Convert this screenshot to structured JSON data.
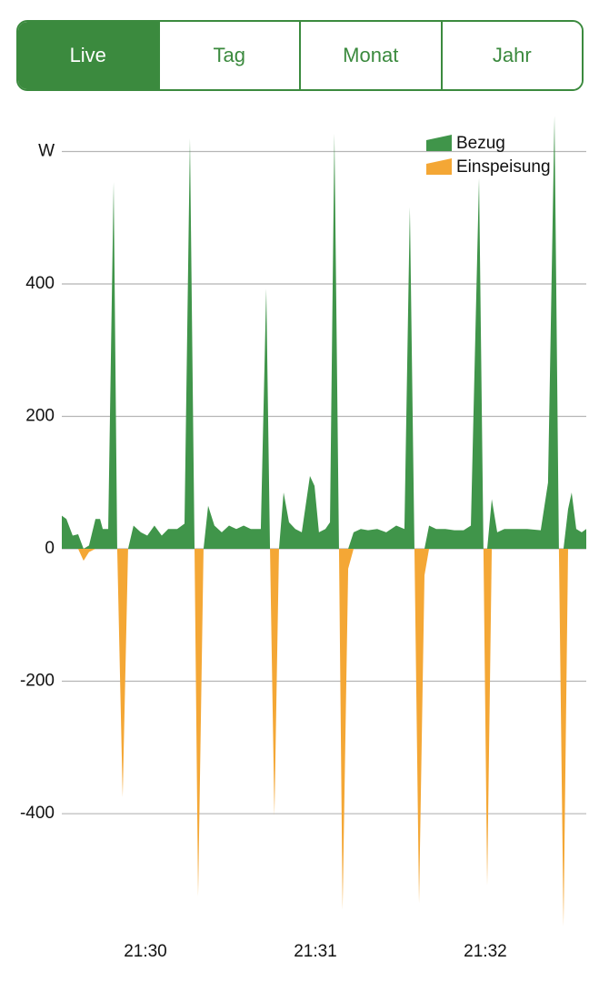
{
  "tabs": {
    "items": [
      "Live",
      "Tag",
      "Monat",
      "Jahr"
    ],
    "selected": 0
  },
  "chart_data": {
    "type": "area",
    "x": [
      1289.508,
      1289.535,
      1289.572,
      1289.604,
      1289.636,
      1289.668,
      1289.706,
      1289.733,
      1289.749,
      1289.781,
      1289.813,
      1289.834,
      1289.866,
      1289.898,
      1289.93,
      1289.973,
      1290.011,
      1290.053,
      1290.096,
      1290.134,
      1290.187,
      1290.23,
      1290.262,
      1290.289,
      1290.31,
      1290.342,
      1290.369,
      1290.406,
      1290.449,
      1290.492,
      1290.535,
      1290.578,
      1290.62,
      1290.679,
      1290.711,
      1290.733,
      1290.759,
      1290.786,
      1290.813,
      1290.845,
      1290.882,
      1290.92,
      1290.968,
      1290.995,
      1291.021,
      1291.059,
      1291.086,
      1291.112,
      1291.139,
      1291.16,
      1291.193,
      1291.225,
      1291.267,
      1291.31,
      1291.364,
      1291.417,
      1291.476,
      1291.524,
      1291.556,
      1291.583,
      1291.61,
      1291.642,
      1291.669,
      1291.711,
      1291.765,
      1291.818,
      1291.872,
      1291.915,
      1291.963,
      1291.989,
      1292.011,
      1292.038,
      1292.07,
      1292.112,
      1292.166,
      1292.246,
      1292.326,
      1292.369,
      1292.407,
      1292.433,
      1292.46,
      1292.487,
      1292.508,
      1292.535,
      1292.567,
      1292.594
    ],
    "series": [
      {
        "name": "Bezug",
        "color": "#40954a",
        "values": [
          50,
          45,
          20,
          22,
          0,
          5,
          45,
          45,
          30,
          30,
          554,
          0,
          0,
          0,
          35,
          25,
          20,
          35,
          20,
          30,
          30,
          38,
          620,
          0,
          0,
          0,
          65,
          35,
          25,
          35,
          30,
          35,
          30,
          30,
          393,
          0,
          0,
          0,
          85,
          40,
          30,
          25,
          110,
          95,
          25,
          30,
          40,
          627,
          0,
          0,
          0,
          25,
          30,
          28,
          30,
          25,
          35,
          30,
          516,
          0,
          0,
          0,
          35,
          30,
          30,
          28,
          28,
          35,
          560,
          0,
          0,
          75,
          25,
          30,
          30,
          30,
          28,
          100,
          654,
          0,
          0,
          60,
          85,
          30,
          25,
          30
        ]
      },
      {
        "name": "Einspeisung",
        "color": "#f4a735",
        "values": [
          0,
          0,
          0,
          0,
          -18,
          -5,
          0,
          0,
          0,
          0,
          0,
          0,
          -375,
          0,
          0,
          0,
          0,
          0,
          0,
          0,
          0,
          0,
          0,
          0,
          -525,
          0,
          0,
          0,
          0,
          0,
          0,
          0,
          0,
          0,
          0,
          0,
          -403,
          0,
          0,
          0,
          0,
          0,
          0,
          0,
          0,
          0,
          0,
          0,
          0,
          -545,
          -30,
          0,
          0,
          0,
          0,
          0,
          0,
          0,
          0,
          0,
          -535,
          -40,
          0,
          0,
          0,
          0,
          0,
          0,
          0,
          0,
          -508,
          0,
          0,
          0,
          0,
          0,
          0,
          0,
          0,
          0,
          -570,
          0,
          0,
          0,
          0,
          0
        ]
      }
    ],
    "xlim": [
      1289.508,
      1292.594
    ],
    "xticks": [
      {
        "value": 1290,
        "label": "21:30"
      },
      {
        "value": 1291,
        "label": "21:31"
      },
      {
        "value": 1292,
        "label": "21:32"
      }
    ],
    "ylim": [
      -580,
      665
    ],
    "yticks": [
      -400,
      -200,
      0,
      200,
      400,
      {
        "value": 600,
        "label": "W"
      }
    ],
    "grid": true,
    "legend": "upper right"
  }
}
